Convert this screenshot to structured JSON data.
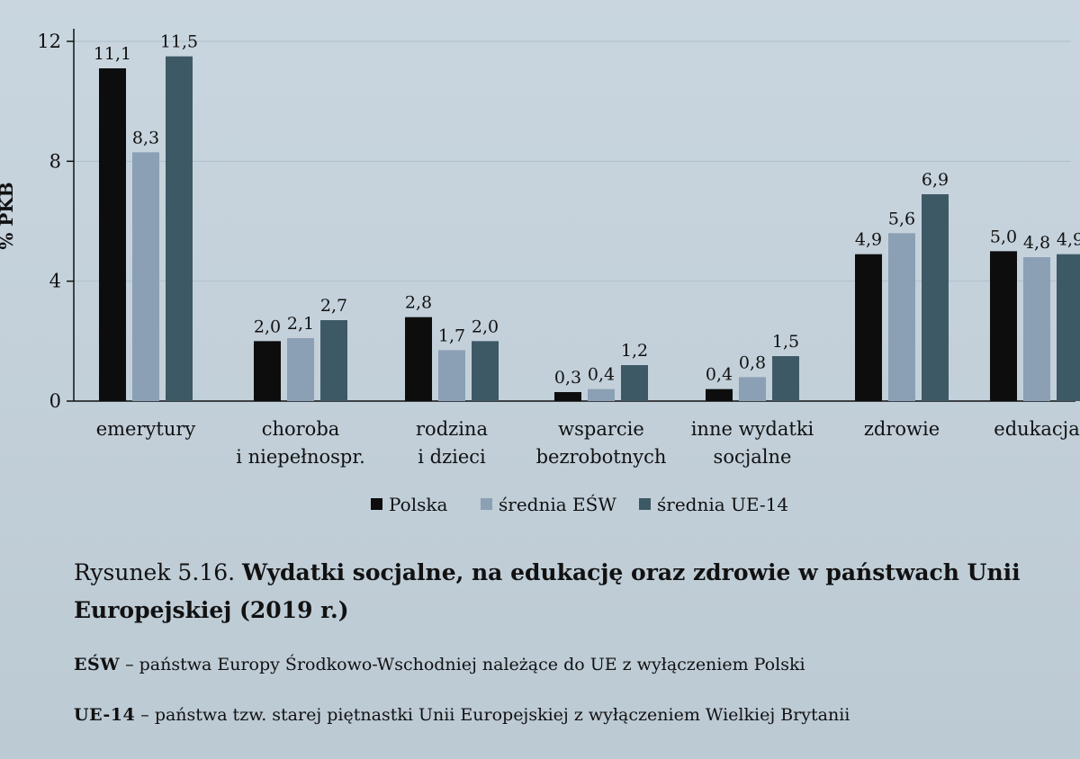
{
  "chart_data": {
    "type": "bar",
    "ylabel": "% PKB",
    "ylim": [
      0,
      12
    ],
    "yticks": [
      0,
      4,
      8,
      12
    ],
    "categories": [
      [
        "emerytury"
      ],
      [
        "choroba",
        "i niepełnospr."
      ],
      [
        "rodzina",
        "i dzieci"
      ],
      [
        "wsparcie",
        "bezrobotnych"
      ],
      [
        "inne wydatki",
        "socjalne"
      ],
      [
        "zdrowie"
      ],
      [
        "edukacja"
      ]
    ],
    "series": [
      {
        "name": "Polska",
        "color": "#0d0d0d",
        "values": [
          11.1,
          2.0,
          2.8,
          0.3,
          0.4,
          4.9,
          5.0
        ],
        "labels": [
          "11,1",
          "2,0",
          "2,8",
          "0,3",
          "0,4",
          "4,9",
          "5,0"
        ]
      },
      {
        "name": "średnia EŚW",
        "color": "#8ba0b4",
        "values": [
          8.3,
          2.1,
          1.7,
          0.4,
          0.8,
          5.6,
          4.8
        ],
        "labels": [
          "8,3",
          "2,1",
          "1,7",
          "0,4",
          "0,8",
          "5,6",
          "4,8"
        ]
      },
      {
        "name": "średnia UE-14",
        "color": "#3e5966",
        "values": [
          11.5,
          2.7,
          2.0,
          1.2,
          1.5,
          6.9,
          4.9
        ],
        "labels": [
          "11,5",
          "2,7",
          "2,0",
          "1,2",
          "1,5",
          "6,9",
          "4,9"
        ]
      }
    ],
    "legend": {
      "position": "bottom",
      "items": [
        "Polska",
        "średnia EŚW",
        "średnia UE-14"
      ]
    }
  },
  "caption": {
    "prefix": "Rysunek 5.16.",
    "title": "Wydatki socjalne, na edukację oraz zdrowie w państwach Unii Europejskiej (2019 r.)"
  },
  "notes": [
    {
      "abbr": "EŚW",
      "text": " – państwa Europy Środkowo-Wschodniej należące do UE z wyłączeniem Polski"
    },
    {
      "abbr": "UE-14",
      "text": " – państwa tzw. starej piętnastki Unii Europejskiej z wyłączeniem Wielkiej Brytanii"
    }
  ]
}
